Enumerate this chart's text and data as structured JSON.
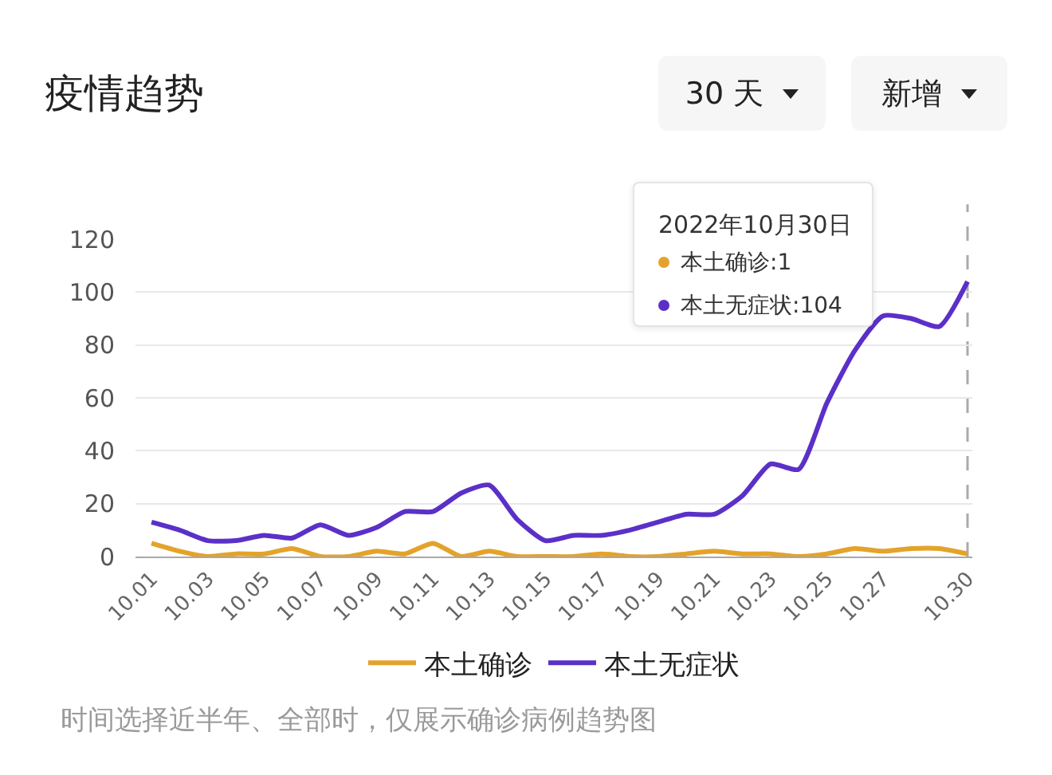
{
  "chart_data": {
    "type": "line",
    "title": "疫情趋势",
    "categories": [
      "10.01",
      null,
      "10.03",
      null,
      "10.05",
      null,
      "10.07",
      null,
      "10.09",
      null,
      "10.11",
      null,
      "10.13",
      null,
      "10.15",
      null,
      "10.17",
      null,
      "10.19",
      null,
      "10.21",
      null,
      "10.23",
      null,
      "10.25",
      null,
      "10.27",
      null,
      null,
      "10.30"
    ],
    "series": [
      {
        "name": "本土确诊",
        "color": "#e3a32b",
        "values": [
          5,
          2,
          0,
          1,
          1,
          3,
          0,
          0,
          2,
          1,
          5,
          0,
          2,
          0,
          0,
          0,
          1,
          0,
          0,
          1,
          2,
          1,
          1,
          0,
          1,
          3,
          2,
          3,
          3,
          1
        ]
      },
      {
        "name": "本土无症状",
        "color": "#5b30c8",
        "values": [
          13,
          10,
          6,
          6,
          8,
          7,
          12,
          8,
          11,
          17,
          17,
          24,
          27,
          14,
          6,
          8,
          8,
          10,
          13,
          16,
          16,
          23,
          35,
          33,
          58,
          78,
          91,
          90,
          87,
          104
        ]
      }
    ],
    "ylim": [
      0,
      120
    ],
    "yticks": [
      0,
      20,
      40,
      60,
      80,
      100,
      120
    ],
    "grid": "y",
    "legend": "bottom",
    "ref_lines": [
      {
        "axis": "x",
        "value": "10.30",
        "color": "#aaaaaa",
        "line_style": "dashed"
      }
    ],
    "annotations": [
      "30 天",
      "新增",
      "2022年10月30日",
      "本土确诊:1",
      "本土无症状:104",
      "时间选择近半年、全部时，仅展示确诊病例趋势图"
    ]
  }
}
